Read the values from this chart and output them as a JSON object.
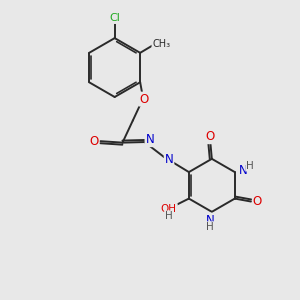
{
  "background_color": "#e8e8e8",
  "bond_color": "#2a2a2a",
  "atom_colors": {
    "O": "#dd0000",
    "N": "#0000cc",
    "Cl": "#22aa22",
    "C": "#2a2a2a",
    "H": "#555555"
  },
  "bond_width": 1.4,
  "figsize": [
    3.0,
    3.0
  ],
  "dpi": 100
}
